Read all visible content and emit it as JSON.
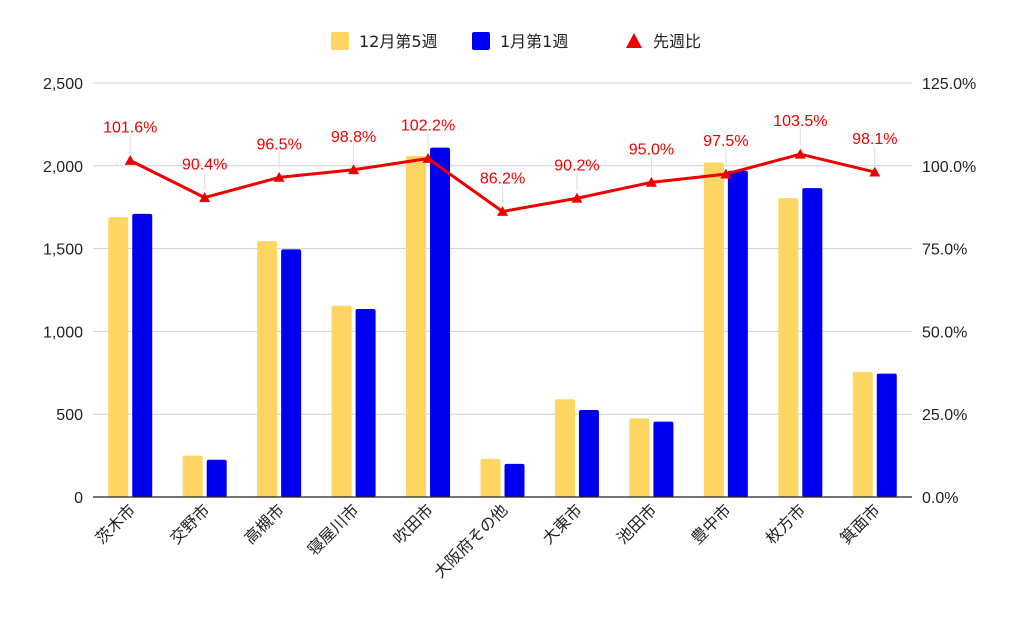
{
  "chart_data": {
    "type": "bar",
    "categories": [
      "茨木市",
      "交野市",
      "高槻市",
      "寝屋川市",
      "吹田市",
      "大阪府その他",
      "大東市",
      "池田市",
      "豊中市",
      "枚方市",
      "箕面市"
    ],
    "series": [
      {
        "name": "12月第5週",
        "type": "bar",
        "axis": "left",
        "color": "#fdd663",
        "values": [
          1690,
          250,
          1545,
          1155,
          2060,
          230,
          590,
          475,
          2020,
          1805,
          755
        ]
      },
      {
        "name": "1月第1週",
        "type": "bar",
        "axis": "left",
        "color": "#0000f0",
        "values": [
          1710,
          225,
          1495,
          1135,
          2110,
          200,
          525,
          455,
          1970,
          1865,
          745
        ]
      },
      {
        "name": "先週比",
        "type": "line",
        "axis": "right",
        "color": "#ee0000",
        "marker": "triangle",
        "values": [
          101.6,
          90.4,
          96.5,
          98.8,
          102.2,
          86.2,
          90.2,
          95.0,
          97.5,
          103.5,
          98.1
        ],
        "labels": [
          "101.6%",
          "90.4%",
          "96.5%",
          "98.8%",
          "102.2%",
          "86.2%",
          "90.2%",
          "95.0%",
          "97.5%",
          "103.5%",
          "98.1%"
        ]
      }
    ],
    "y_left": {
      "range": [
        0,
        2500
      ],
      "ticks": [
        0,
        500,
        1000,
        1500,
        2000,
        2500
      ],
      "tick_labels": [
        "0",
        "500",
        "1,000",
        "1,500",
        "2,000",
        "2,500"
      ]
    },
    "y_right": {
      "range": [
        0,
        125
      ],
      "ticks": [
        0,
        25,
        50,
        75,
        100,
        125
      ],
      "tick_labels": [
        "0.0%",
        "25.0%",
        "50.0%",
        "75.0%",
        "100.0%",
        "125.0%"
      ]
    },
    "grid": true,
    "legend": "top-center"
  }
}
